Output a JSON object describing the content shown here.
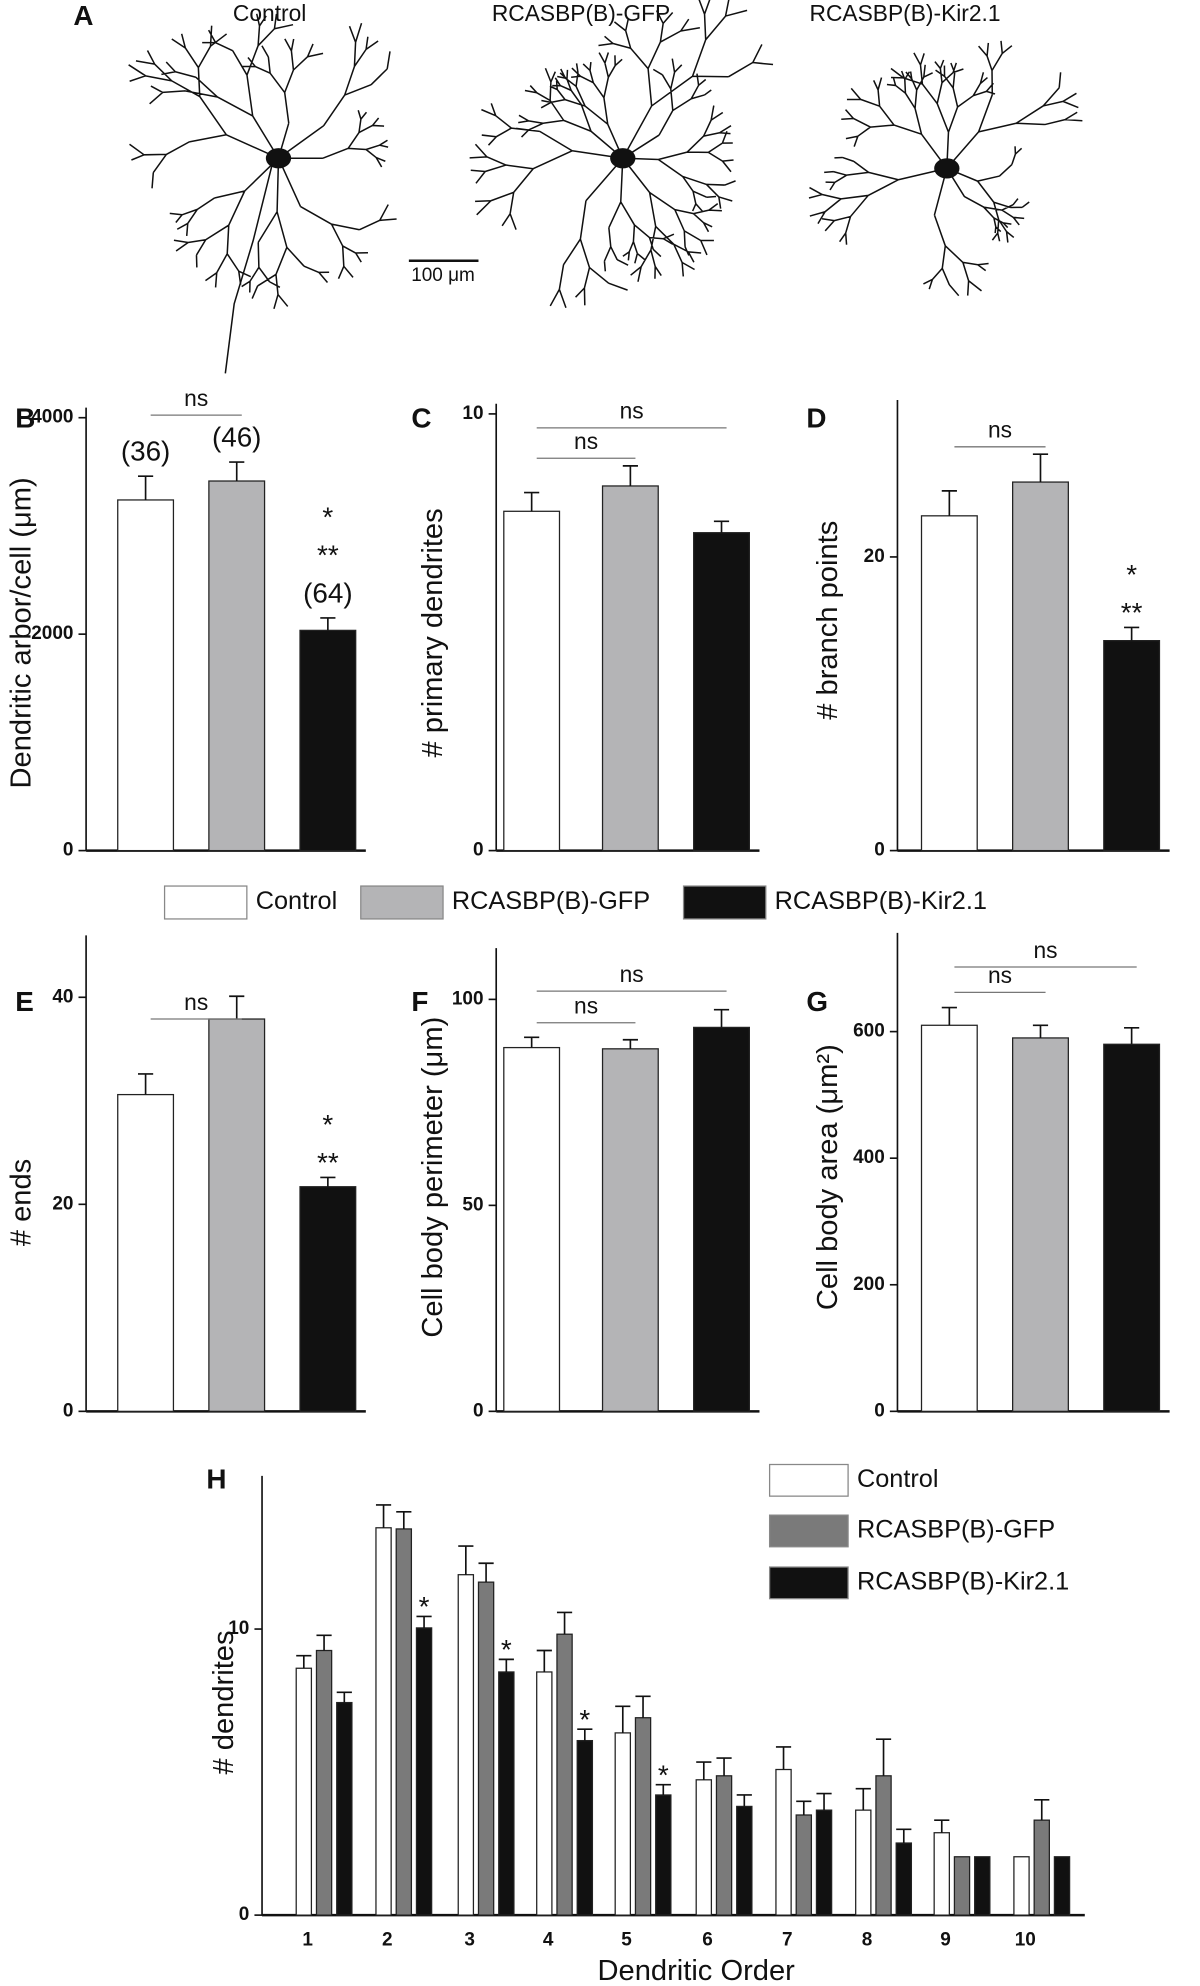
{
  "panel_a": {
    "label": "A",
    "titles": [
      "Control",
      "RCASBP(B)-GFP",
      "RCASBP(B)-Kir2.1"
    ],
    "scale_bar": "100 μm"
  },
  "chart_data": [
    {
      "type": "bar",
      "panel": "B",
      "ylabel": "Dendritic arbor/cell (μm)",
      "ylim": [
        0,
        4000
      ],
      "yticks": [
        0,
        2000,
        4000
      ],
      "brackets": [
        "ns"
      ],
      "legend": true,
      "series": [
        {
          "name": "Control",
          "color": "#ffffff",
          "values": [
            3240
          ],
          "errors": [
            220
          ],
          "notes": [
            "(36)"
          ]
        },
        {
          "name": "RCASBP(B)-GFP",
          "color": "#b4b4b6",
          "values": [
            3415
          ],
          "errors": [
            175
          ],
          "notes": [
            "(46)"
          ]
        },
        {
          "name": "RCASBP(B)-Kir2.1",
          "color": "#111111",
          "values": [
            2035
          ],
          "errors": [
            115
          ],
          "notes": [
            "*",
            "**",
            "(64)"
          ]
        }
      ]
    },
    {
      "type": "bar",
      "panel": "C",
      "ylabel": "# primary dendrites",
      "ylim": [
        0,
        10
      ],
      "yticks": [
        0,
        10
      ],
      "brackets": [
        "ns",
        "ns"
      ],
      "legend": false,
      "series": [
        {
          "name": "Control",
          "color": "#ffffff",
          "values": [
            7.77
          ],
          "errors": [
            0.43
          ]
        },
        {
          "name": "RCASBP(B)-GFP",
          "color": "#b4b4b6",
          "values": [
            8.35
          ],
          "errors": [
            0.46
          ]
        },
        {
          "name": "RCASBP(B)-Kir2.1",
          "color": "#111111",
          "values": [
            7.28
          ],
          "errors": [
            0.26
          ]
        }
      ]
    },
    {
      "type": "bar",
      "panel": "D",
      "ylabel": "# branch points",
      "ylim": [
        0,
        30
      ],
      "yticks": [
        0,
        20
      ],
      "brackets": [
        "ns"
      ],
      "legend": false,
      "series": [
        {
          "name": "Control",
          "color": "#ffffff",
          "values": [
            22.8
          ],
          "errors": [
            1.7
          ]
        },
        {
          "name": "RCASBP(B)-GFP",
          "color": "#b4b4b6",
          "values": [
            25.1
          ],
          "errors": [
            1.9
          ]
        },
        {
          "name": "RCASBP(B)-Kir2.1",
          "color": "#111111",
          "values": [
            14.3
          ],
          "errors": [
            0.9
          ],
          "notes": [
            "*",
            "**"
          ]
        }
      ]
    },
    {
      "type": "bar",
      "panel": "E",
      "ylabel": "# ends",
      "ylim": [
        0,
        45
      ],
      "yticks": [
        0,
        20,
        40
      ],
      "brackets": [
        "ns"
      ],
      "legend": false,
      "series": [
        {
          "name": "Control",
          "color": "#ffffff",
          "values": [
            30.6
          ],
          "errors": [
            2.0
          ]
        },
        {
          "name": "RCASBP(B)-GFP",
          "color": "#b4b4b6",
          "values": [
            37.9
          ],
          "errors": [
            2.2
          ]
        },
        {
          "name": "RCASBP(B)-Kir2.1",
          "color": "#111111",
          "values": [
            21.7
          ],
          "errors": [
            0.9
          ],
          "notes": [
            "*",
            "**"
          ]
        }
      ]
    },
    {
      "type": "bar",
      "panel": "F",
      "ylabel": "Cell body perimeter (μm)",
      "ylim": [
        0,
        110
      ],
      "yticks": [
        0,
        50,
        100
      ],
      "brackets": [
        "ns",
        "ns"
      ],
      "legend": false,
      "series": [
        {
          "name": "Control",
          "color": "#ffffff",
          "values": [
            88.3
          ],
          "errors": [
            2.5
          ]
        },
        {
          "name": "RCASBP(B)-GFP",
          "color": "#b4b4b6",
          "values": [
            88.0
          ],
          "errors": [
            2.2
          ]
        },
        {
          "name": "RCASBP(B)-Kir2.1",
          "color": "#111111",
          "values": [
            93.2
          ],
          "errors": [
            4.3
          ]
        }
      ]
    },
    {
      "type": "bar",
      "panel": "G",
      "ylabel": "Cell body area (μm²)",
      "ylim": [
        0,
        740
      ],
      "yticks": [
        0,
        200,
        400,
        600
      ],
      "brackets": [
        "ns",
        "ns"
      ],
      "legend": false,
      "series": [
        {
          "name": "Control",
          "color": "#ffffff",
          "values": [
            610
          ],
          "errors": [
            28
          ]
        },
        {
          "name": "RCASBP(B)-GFP",
          "color": "#b4b4b6",
          "values": [
            590
          ],
          "errors": [
            20
          ]
        },
        {
          "name": "RCASBP(B)-Kir2.1",
          "color": "#111111",
          "values": [
            580
          ],
          "errors": [
            26
          ]
        }
      ]
    },
    {
      "type": "grouped_bar",
      "panel": "H",
      "ylabel": "# dendrites",
      "xlabel": "Dendritic Order",
      "ylim": [
        0,
        15
      ],
      "yticks": [
        0,
        10
      ],
      "legend": true,
      "categories": [
        "1",
        "2",
        "3",
        "4",
        "5",
        "6",
        "7",
        "8",
        "9",
        "10"
      ],
      "series": [
        {
          "name": "Control",
          "color": "#ffffff",
          "values": [
            8.63,
            13.54,
            11.9,
            8.5,
            6.37,
            4.73,
            5.09,
            3.67,
            2.88,
            2.04
          ],
          "errors": [
            0.44,
            0.8,
            1.0,
            0.75,
            0.93,
            0.62,
            0.79,
            0.75,
            0.44,
            null
          ]
        },
        {
          "name": "RCASBP(B)-GFP",
          "color": "#7a7a7a",
          "values": [
            9.25,
            13.5,
            11.64,
            9.82,
            6.9,
            4.87,
            3.5,
            4.87,
            2.04,
            3.32
          ],
          "errors": [
            0.53,
            0.6,
            0.66,
            0.76,
            0.75,
            0.62,
            0.48,
            1.28,
            null,
            0.71
          ]
        },
        {
          "name": "RCASBP(B)-Kir2.1",
          "color": "#111111",
          "values": [
            7.43,
            10.04,
            8.5,
            6.1,
            4.2,
            3.8,
            3.67,
            2.52,
            2.04,
            2.04
          ],
          "errors": [
            0.36,
            0.4,
            0.44,
            0.4,
            0.36,
            0.4,
            0.58,
            0.48,
            null,
            null
          ],
          "markers": [
            null,
            "*",
            "*",
            "*",
            "*",
            null,
            null,
            null,
            null,
            null
          ]
        }
      ]
    }
  ]
}
